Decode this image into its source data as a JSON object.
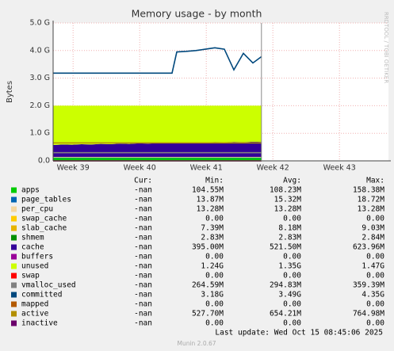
{
  "chart_data": {
    "type": "line",
    "title": "Memory usage - by month",
    "y_label": "Bytes",
    "watermark": "RRDTOOL / TOBI OETIKER",
    "footer": "Munin 2.0.67",
    "last_update": "Last update: Wed Oct 15 08:45:06 2025",
    "legend_headers": [
      "Cur:",
      "Min:",
      "Avg:",
      "Max:"
    ],
    "grid": true,
    "ylim": [
      0,
      5000000000
    ],
    "yticks": [
      {
        "value": 0,
        "label": "0.0"
      },
      {
        "value": 1000000000,
        "label": "1.0 G"
      },
      {
        "value": 2000000000,
        "label": "2.0 G"
      },
      {
        "value": 3000000000,
        "label": "3.0 G"
      },
      {
        "value": 4000000000,
        "label": "4.0 G"
      },
      {
        "value": 5000000000,
        "label": "5.0 G"
      }
    ],
    "xlim": [
      0,
      35.25
    ],
    "xticks": [
      {
        "value": 2.1,
        "label": "Week 39"
      },
      {
        "value": 9.1,
        "label": "Week 40"
      },
      {
        "value": 16.1,
        "label": "Week 41"
      },
      {
        "value": 23.1,
        "label": "Week 42"
      },
      {
        "value": 30.1,
        "label": "Week 43"
      }
    ],
    "x": [
      0,
      1,
      2,
      3,
      4,
      5,
      6,
      7,
      8,
      9,
      10,
      11,
      12,
      13,
      14,
      15,
      16,
      17,
      18,
      19,
      20,
      21,
      21.9
    ],
    "series": [
      {
        "name": "apps",
        "color": "#00cc00",
        "style": "area",
        "stats": [
          "-nan",
          "104.55M",
          "108.23M",
          "158.38M"
        ],
        "values": [
          105000000.0,
          105000000.0,
          105000000.0,
          105000000.0,
          105000000.0,
          105000000.0,
          105000000.0,
          105000000.0,
          105000000.0,
          105000000.0,
          105000000.0,
          105000000.0,
          105000000.0,
          105000000.0,
          105000000.0,
          105000000.0,
          105000000.0,
          105000000.0,
          105000000.0,
          105000000.0,
          105000000.0,
          105000000.0,
          105000000.0
        ]
      },
      {
        "name": "page_tables",
        "color": "#0066b3",
        "style": "area",
        "stats": [
          "-nan",
          "13.87M",
          "15.32M",
          "18.72M"
        ],
        "values": [
          15000000.0,
          15000000.0,
          15000000.0,
          15000000.0,
          15000000.0,
          15000000.0,
          15000000.0,
          15000000.0,
          15000000.0,
          15000000.0,
          15000000.0,
          15000000.0,
          15000000.0,
          15000000.0,
          15000000.0,
          15000000.0,
          15000000.0,
          15000000.0,
          15000000.0,
          15000000.0,
          15000000.0,
          15000000.0,
          15000000.0
        ]
      },
      {
        "name": "per_cpu",
        "color": "#f5d7a0",
        "style": "area",
        "stats": [
          "-nan",
          "13.28M",
          "13.28M",
          "13.28M"
        ],
        "values": [
          13300000.0,
          13300000.0,
          13300000.0,
          13300000.0,
          13300000.0,
          13300000.0,
          13300000.0,
          13300000.0,
          13300000.0,
          13300000.0,
          13300000.0,
          13300000.0,
          13300000.0,
          13300000.0,
          13300000.0,
          13300000.0,
          13300000.0,
          13300000.0,
          13300000.0,
          13300000.0,
          13300000.0,
          13300000.0,
          13300000.0
        ]
      },
      {
        "name": "swap_cache",
        "color": "#ffcc00",
        "style": "area",
        "stats": [
          "-nan",
          "0.00",
          "0.00",
          "0.00"
        ],
        "values": [
          0,
          0,
          0,
          0,
          0,
          0,
          0,
          0,
          0,
          0,
          0,
          0,
          0,
          0,
          0,
          0,
          0,
          0,
          0,
          0,
          0,
          0,
          0
        ]
      },
      {
        "name": "slab_cache",
        "color": "#e6b400",
        "style": "area",
        "stats": [
          "-nan",
          "7.39M",
          "8.18M",
          "9.03M"
        ],
        "values": [
          8200000.0,
          8200000.0,
          8200000.0,
          8200000.0,
          8200000.0,
          8200000.0,
          8200000.0,
          8200000.0,
          8200000.0,
          8200000.0,
          8200000.0,
          8200000.0,
          8200000.0,
          8200000.0,
          8200000.0,
          8200000.0,
          8200000.0,
          8200000.0,
          8200000.0,
          8200000.0,
          8200000.0,
          8200000.0,
          8200000.0
        ]
      },
      {
        "name": "shmem",
        "color": "#008f00",
        "style": "area",
        "stats": [
          "-nan",
          "2.83M",
          "2.83M",
          "2.84M"
        ],
        "values": [
          2830000.0,
          2830000.0,
          2830000.0,
          2830000.0,
          2830000.0,
          2830000.0,
          2830000.0,
          2830000.0,
          2830000.0,
          2830000.0,
          2830000.0,
          2830000.0,
          2830000.0,
          2830000.0,
          2830000.0,
          2830000.0,
          2830000.0,
          2830000.0,
          2830000.0,
          2830000.0,
          2830000.0,
          2830000.0,
          2830000.0
        ]
      },
      {
        "name": "cache",
        "color": "#330099",
        "style": "area",
        "stats": [
          "-nan",
          "395.00M",
          "521.50M",
          "623.96M"
        ],
        "values": [
          430000000.0,
          450000000.0,
          440000000.0,
          460000000.0,
          450000000.0,
          470000000.0,
          460000000.0,
          480000000.0,
          470000000.0,
          490000000.0,
          480000000.0,
          500000000.0,
          490000000.0,
          510000000.0,
          500000000.0,
          520000000.0,
          510000000.0,
          530000000.0,
          520000000.0,
          540000000.0,
          530000000.0,
          550000000.0,
          540000000.0
        ]
      },
      {
        "name": "buffers",
        "color": "#990099",
        "style": "area",
        "stats": [
          "-nan",
          "0.00",
          "0.00",
          "0.00"
        ],
        "values": [
          0,
          0,
          0,
          0,
          0,
          0,
          0,
          0,
          0,
          0,
          0,
          0,
          0,
          0,
          0,
          0,
          0,
          0,
          0,
          0,
          0,
          0,
          0
        ]
      },
      {
        "name": "unused",
        "color": "#ccff00",
        "style": "area",
        "stats": [
          "-nan",
          "1.24G",
          "1.35G",
          "1.47G"
        ],
        "values": [
          1425670000.0,
          1405670000.0,
          1415670000.0,
          1395670000.0,
          1405670000.0,
          1385670000.0,
          1395670000.0,
          1375670000.0,
          1385670000.0,
          1365670000.0,
          1375670000.0,
          1355670000.0,
          1365670000.0,
          1345670000.0,
          1355670000.0,
          1335670000.0,
          1345670000.0,
          1325670000.0,
          1335670000.0,
          1315670000.0,
          1325670000.0,
          1305670000.0,
          1315670000.0
        ]
      },
      {
        "name": "swap",
        "color": "#ff0000",
        "style": "area",
        "stats": [
          "-nan",
          "0.00",
          "0.00",
          "0.00"
        ],
        "values": [
          0,
          0,
          0,
          0,
          0,
          0,
          0,
          0,
          0,
          0,
          0,
          0,
          0,
          0,
          0,
          0,
          0,
          0,
          0,
          0,
          0,
          0,
          0
        ]
      },
      {
        "name": "vmalloc_used",
        "color": "#808080",
        "style": "line",
        "stats": [
          "-nan",
          "264.59M",
          "294.83M",
          "359.39M"
        ],
        "values": [
          295000000.0,
          295000000.0,
          295000000.0,
          295000000.0,
          295000000.0,
          295000000.0,
          295000000.0,
          295000000.0,
          295000000.0,
          295000000.0,
          295000000.0,
          295000000.0,
          295000000.0,
          295000000.0,
          295000000.0,
          295000000.0,
          295000000.0,
          295000000.0,
          295000000.0,
          295000000.0,
          295000000.0,
          295000000.0,
          295000000.0
        ]
      },
      {
        "name": "committed",
        "color": "#00487d",
        "style": "line",
        "stats": [
          "-nan",
          "3.18G",
          "3.49G",
          "4.35G"
        ],
        "values": [
          3180000000.0,
          3180000000.0,
          3180000000.0,
          3180000000.0,
          3180000000.0,
          3180000000.0,
          3180000000.0,
          3180000000.0,
          3180000000.0,
          3180000000.0,
          3180000000.0,
          3180000000.0,
          3180000000.0,
          3950000000.0,
          3970000000.0,
          4000000000.0,
          4050000000.0,
          4100000000.0,
          4050000000.0,
          3300000000.0,
          3900000000.0,
          3550000000.0,
          3780000000.0
        ]
      },
      {
        "name": "mapped",
        "color": "#b35a00",
        "style": "line",
        "stats": [
          "-nan",
          "0.00",
          "0.00",
          "0.00"
        ],
        "values": [
          0,
          0,
          0,
          0,
          0,
          0,
          0,
          0,
          0,
          0,
          0,
          0,
          0,
          0,
          0,
          0,
          0,
          0,
          0,
          0,
          0,
          0,
          0
        ]
      },
      {
        "name": "active",
        "color": "#b38f00",
        "style": "line",
        "stats": [
          "-nan",
          "527.70M",
          "654.21M",
          "764.98M"
        ],
        "values": [
          650000000.0,
          650000000.0,
          650000000.0,
          650000000.0,
          650000000.0,
          650000000.0,
          650000000.0,
          650000000.0,
          650000000.0,
          650000000.0,
          650000000.0,
          650000000.0,
          650000000.0,
          650000000.0,
          650000000.0,
          650000000.0,
          650000000.0,
          650000000.0,
          650000000.0,
          650000000.0,
          650000000.0,
          650000000.0,
          650000000.0
        ]
      },
      {
        "name": "inactive",
        "color": "#6b006b",
        "style": "line",
        "stats": [
          "-nan",
          "0.00",
          "0.00",
          "0.00"
        ],
        "values": [
          0,
          0,
          0,
          0,
          0,
          0,
          0,
          0,
          0,
          0,
          0,
          0,
          0,
          0,
          0,
          0,
          0,
          0,
          0,
          0,
          0,
          0,
          0
        ]
      }
    ]
  }
}
